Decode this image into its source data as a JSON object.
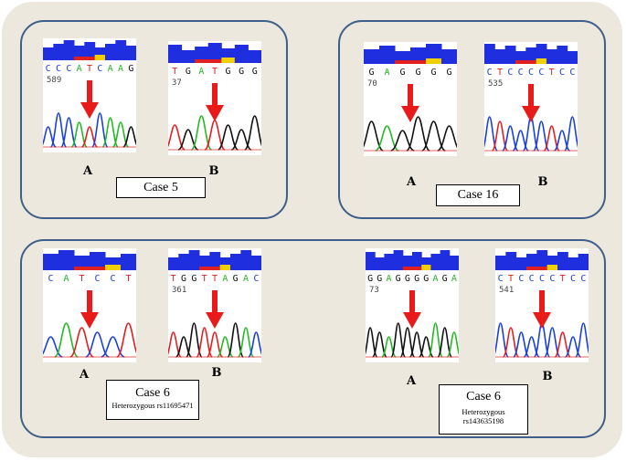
{
  "groups": [
    {
      "case_label": "Case 5",
      "panels": [
        {
          "letter": "A",
          "sequence": "CCCATCAAG",
          "position": "589"
        },
        {
          "letter": "B",
          "sequence": "TGATGGG",
          "position": "37"
        }
      ]
    },
    {
      "case_label": "Case 16",
      "panels": [
        {
          "letter": "A",
          "sequence": "GAGGGG",
          "position": "70"
        },
        {
          "letter": "B",
          "sequence": "CTCCCCTCC",
          "position": "535"
        }
      ]
    },
    {
      "case_label": "Case 6",
      "case_note": "Heterozygous rs11695471",
      "panels": [
        {
          "letter": "A",
          "sequence": "CATCCT",
          "position": ""
        },
        {
          "letter": "B",
          "sequence": "TGGTTAGAC",
          "position": "361"
        }
      ]
    },
    {
      "case_label": "Case 6",
      "case_note_line1": "Heterozygous",
      "case_note_line2": "rs143635198",
      "panels": [
        {
          "letter": "A",
          "sequence": "GGAGGGGAGA",
          "position": "73"
        },
        {
          "letter": "B",
          "sequence": "CTCCCCTCC",
          "position": "541"
        }
      ]
    }
  ],
  "colors": {
    "A": "#22bb22",
    "C": "#1a3fe0",
    "G": "#111111",
    "T": "#e02020",
    "quality_bar": "#1f2fe0",
    "arrow": "#e81a1a",
    "border": "#3f5f8a"
  }
}
